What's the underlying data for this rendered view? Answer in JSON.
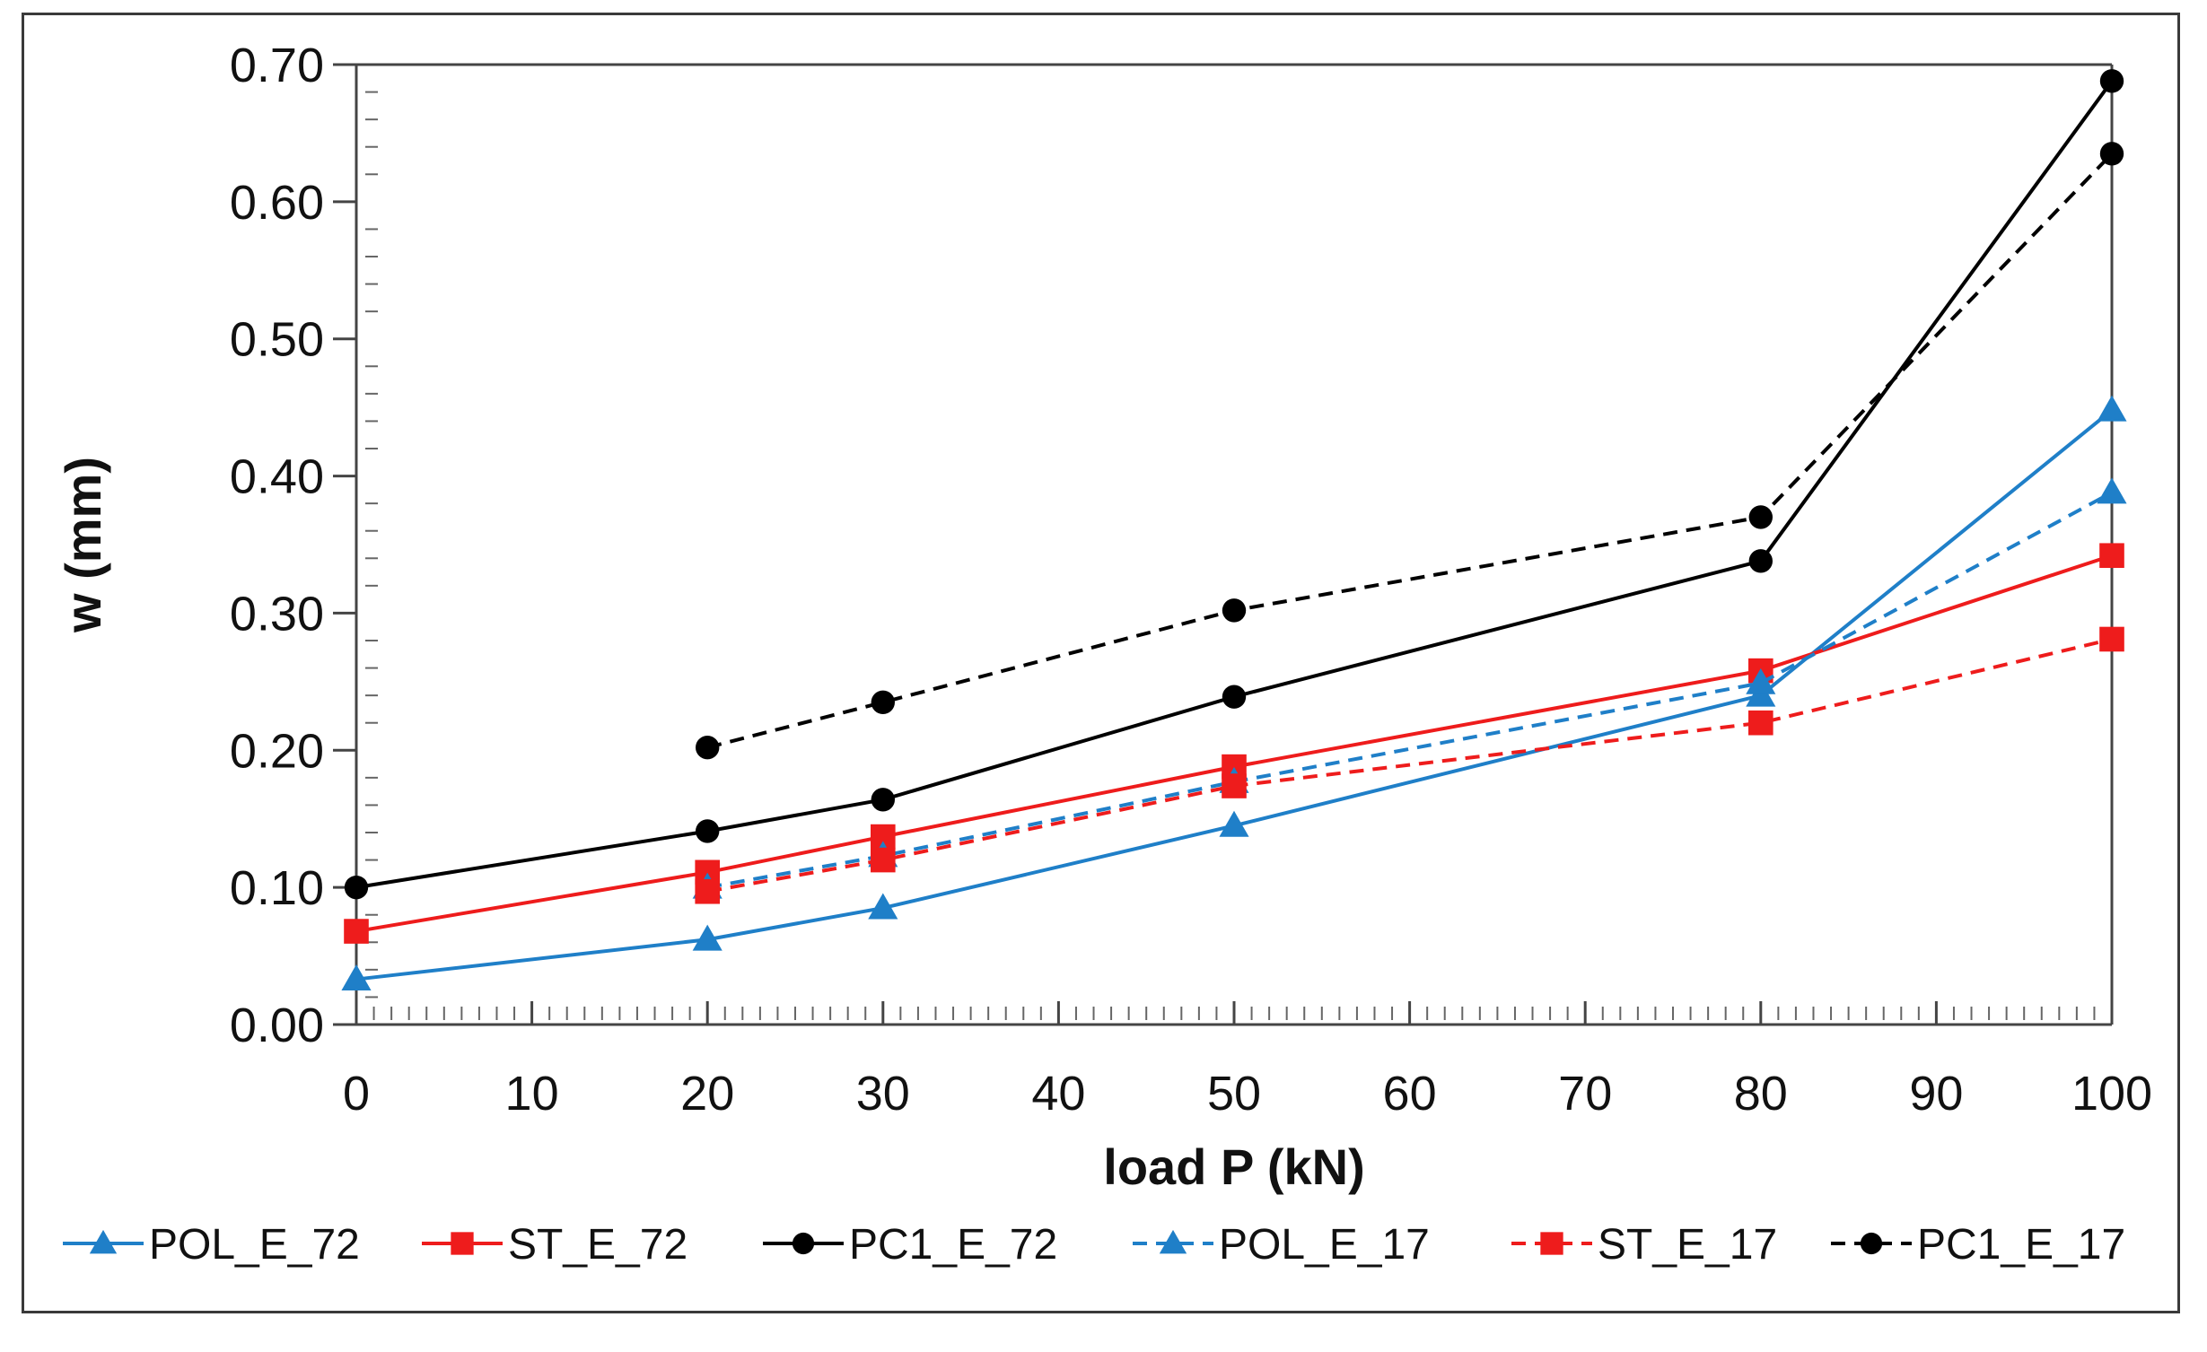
{
  "chart_data": {
    "type": "line",
    "title": "",
    "xlabel": "load P (kN)",
    "ylabel": "w (mm)",
    "xlim": [
      0,
      100
    ],
    "ylim": [
      0,
      0.7
    ],
    "x_ticks": [
      "0",
      "10",
      "20",
      "30",
      "40",
      "50",
      "60",
      "70",
      "80",
      "90",
      "100"
    ],
    "y_ticks": [
      "0.00",
      "0.10",
      "0.20",
      "0.30",
      "0.40",
      "0.50",
      "0.60",
      "0.70"
    ],
    "grid": false,
    "legend_position": "bottom",
    "series": [
      {
        "name": "POL_E_72",
        "color": "#1f7fc8",
        "dash": "solid",
        "marker": "triangle",
        "x": [
          0,
          20,
          30,
          50,
          80,
          100
        ],
        "y": [
          0.033,
          0.062,
          0.085,
          0.145,
          0.24,
          0.448
        ]
      },
      {
        "name": "ST_E_72",
        "color": "#ee1c1c",
        "dash": "solid",
        "marker": "square",
        "x": [
          0,
          20,
          30,
          50,
          80,
          100
        ],
        "y": [
          0.068,
          0.111,
          0.137,
          0.188,
          0.258,
          0.342
        ]
      },
      {
        "name": "PC1_E_72",
        "color": "#000000",
        "dash": "solid",
        "marker": "circle",
        "x": [
          0,
          20,
          30,
          50,
          80,
          100
        ],
        "y": [
          0.1,
          0.141,
          0.164,
          0.239,
          0.338,
          0.688
        ]
      },
      {
        "name": "POL_E_17",
        "color": "#1f7fc8",
        "dash": "dashed",
        "marker": "triangle",
        "x": [
          20,
          30,
          50,
          80,
          100
        ],
        "y": [
          0.1,
          0.123,
          0.177,
          0.249,
          0.388
        ]
      },
      {
        "name": "ST_E_17",
        "color": "#ee1c1c",
        "dash": "dashed",
        "marker": "square",
        "x": [
          20,
          30,
          50,
          80,
          100
        ],
        "y": [
          0.097,
          0.12,
          0.174,
          0.22,
          0.281
        ]
      },
      {
        "name": "PC1_E_17",
        "color": "#000000",
        "dash": "dashed",
        "marker": "circle",
        "x": [
          20,
          30,
          50,
          80,
          100
        ],
        "y": [
          0.202,
          0.235,
          0.302,
          0.37,
          0.635
        ]
      }
    ]
  }
}
